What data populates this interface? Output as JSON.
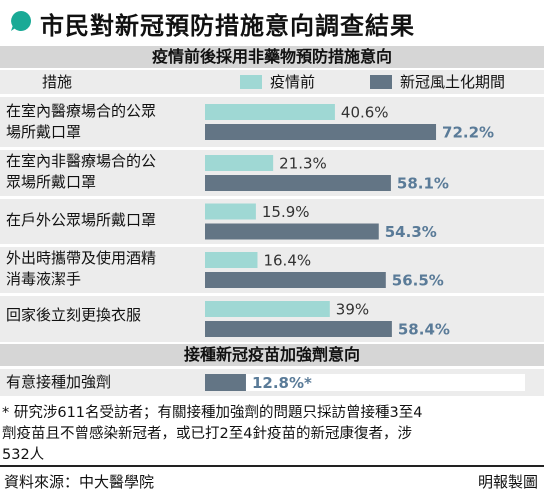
{
  "title": "市民對新冠預防措施意向調查結果",
  "section1": {
    "heading": "疫情前後採用非藥物預防措施意向",
    "column_label": "措施",
    "legend": [
      {
        "label": "疫情前",
        "color": "#9fd8d4"
      },
      {
        "label": "新冠風土化期間",
        "color": "#637585"
      }
    ]
  },
  "rows": [
    {
      "label_lines": [
        "在室內醫療場合的公眾",
        "場所戴口罩"
      ]
    },
    {
      "label_lines": [
        "在室內非醫療場合的公",
        "眾場所戴口罩"
      ]
    },
    {
      "label_lines": [
        "在戶外公眾場所戴口罩"
      ]
    },
    {
      "label_lines": [
        "外出時攜帶及使用酒精",
        "消毒液潔手"
      ]
    },
    {
      "label_lines": [
        "回家後立刻更換衣服"
      ]
    }
  ],
  "section2": {
    "heading": "接種新冠疫苗加強劑意向",
    "item_label": "有意接種加強劑"
  },
  "footnote_lines": [
    "* 研究涉611名受訪者；有關接種加強劑的問題只採訪曾接種3至4",
    "劑疫苗且不曾感染新冠者，或已打2至4針疫苗的新冠康復者，涉",
    "532人"
  ],
  "source": "資料來源：中大醫學院",
  "credit": "明報製圖",
  "chart_data": [
    {
      "type": "bar",
      "orientation": "horizontal",
      "categories": [
        "在室內醫療場合的公眾場所戴口罩",
        "在室內非醫療場合的公眾場所戴口罩",
        "在戶外公眾場所戴口罩",
        "外出時攜帶及使用酒精消毒液潔手",
        "回家後立刻更換衣服"
      ],
      "series": [
        {
          "name": "疫情前",
          "values": [
            40.6,
            21.3,
            15.9,
            16.4,
            39
          ],
          "labels": [
            "40.6%",
            "21.3%",
            "15.9%",
            "16.4%",
            "39%"
          ],
          "color": "#9fd8d4",
          "label_color": "#333333"
        },
        {
          "name": "新冠風土化期間",
          "values": [
            72.2,
            58.1,
            54.3,
            56.5,
            58.4
          ],
          "labels": [
            "72.2%",
            "58.1%",
            "54.3%",
            "56.5%",
            "58.4%"
          ],
          "color": "#637585",
          "label_color": "#5a7b98"
        }
      ],
      "xlim": [
        0,
        100
      ],
      "unit": "%",
      "title": "疫情前後採用非藥物預防措施意向"
    },
    {
      "type": "bar",
      "orientation": "horizontal",
      "categories": [
        "有意接種加強劑"
      ],
      "values": [
        12.8
      ],
      "labels": [
        "12.8%*"
      ],
      "color": "#637585",
      "track_color": "#ffffff",
      "label_color": "#5a7b98",
      "xlim": [
        0,
        100
      ],
      "unit": "%",
      "title": "接種新冠疫苗加強劑意向"
    }
  ]
}
